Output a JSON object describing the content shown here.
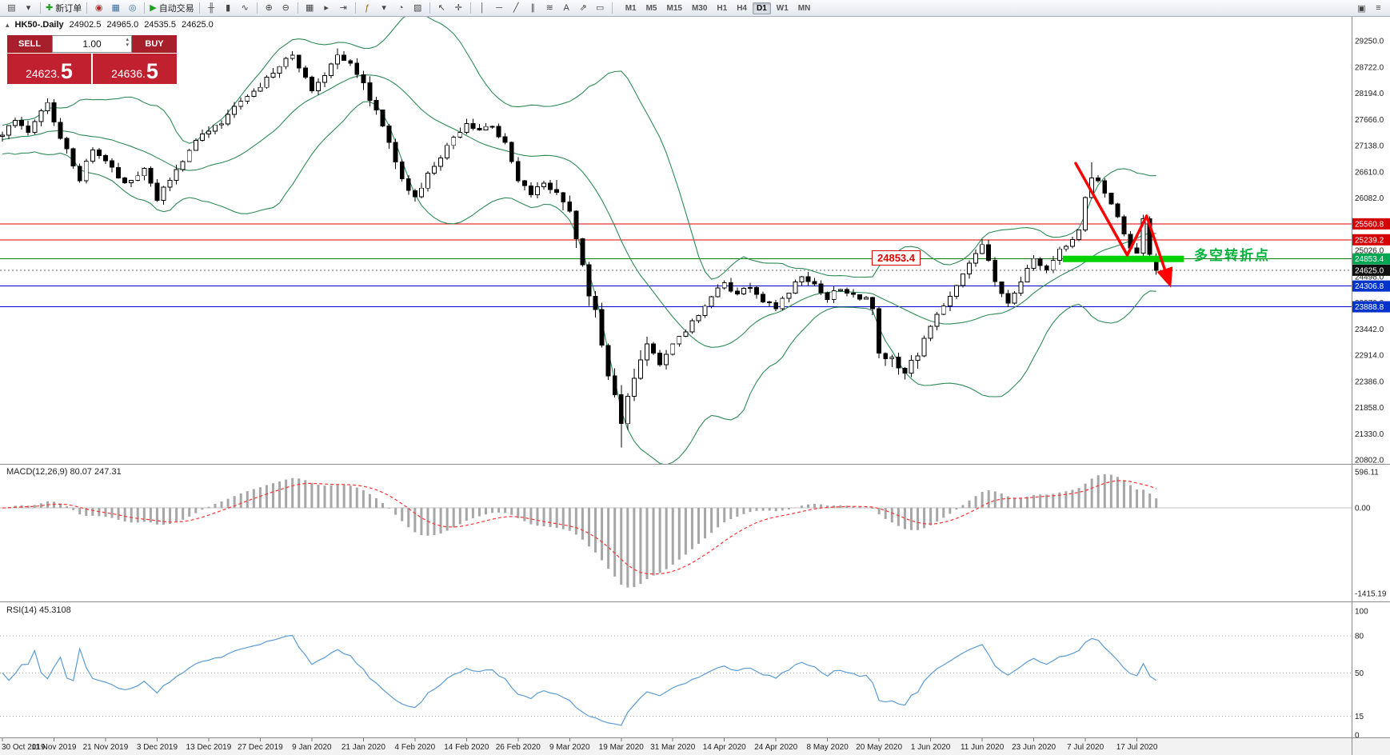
{
  "toolbar": {
    "groups": [
      {
        "items": [
          {
            "name": "charts-icon",
            "glyph": "▤"
          },
          {
            "name": "chart-list-dropdown-icon",
            "glyph": "▾"
          }
        ]
      },
      {
        "items": [
          {
            "name": "new-order-button",
            "glyph": "✚",
            "glyph_color": "#1f9e1f",
            "label": "新订单"
          }
        ]
      },
      {
        "items": [
          {
            "name": "market-watch-icon",
            "glyph": "◉",
            "glyph_color": "#b03030"
          },
          {
            "name": "data-window-icon",
            "glyph": "▦",
            "glyph_color": "#3a6ea5"
          },
          {
            "name": "navigator-icon",
            "glyph": "◎",
            "glyph_color": "#3a6ea5"
          }
        ]
      },
      {
        "items": [
          {
            "name": "auto-trading-button",
            "glyph": "▶",
            "glyph_color": "#1f9e1f",
            "label": "自动交易"
          }
        ]
      },
      {
        "items": [
          {
            "name": "bar-chart-icon",
            "glyph": "╫"
          },
          {
            "name": "candlestick-chart-icon",
            "glyph": "▮"
          },
          {
            "name": "line-chart-icon",
            "glyph": "∿"
          }
        ]
      },
      {
        "items": [
          {
            "name": "zoom-in-icon",
            "glyph": "⊕"
          },
          {
            "name": "zoom-out-icon",
            "glyph": "⊖"
          }
        ]
      },
      {
        "items": [
          {
            "name": "tile-windows-icon",
            "glyph": "▦"
          },
          {
            "name": "auto-scroll-icon",
            "glyph": "▸"
          },
          {
            "name": "chart-shift-icon",
            "glyph": "⇥"
          }
        ]
      },
      {
        "items": [
          {
            "name": "indicators-icon",
            "glyph": "ƒ",
            "glyph_color": "#8a6d1a"
          },
          {
            "name": "indicators-dropdown-icon",
            "glyph": "▾"
          },
          {
            "name": "periods-dropdown-icon",
            "glyph": "◔"
          },
          {
            "name": "templates-icon",
            "glyph": "▧"
          }
        ]
      },
      {
        "items": [
          {
            "name": "cursor-icon",
            "glyph": "↖"
          },
          {
            "name": "crosshair-icon",
            "glyph": "✛"
          }
        ]
      },
      {
        "items": [
          {
            "name": "vertical-line-icon",
            "glyph": "│"
          },
          {
            "name": "horizontal-line-icon",
            "glyph": "─"
          },
          {
            "name": "trendline-icon",
            "glyph": "╱"
          },
          {
            "name": "channel-icon",
            "glyph": "∥"
          },
          {
            "name": "fibonacci-icon",
            "glyph": "≋"
          },
          {
            "name": "text-label-icon",
            "glyph": "A"
          },
          {
            "name": "arrow-object-icon",
            "glyph": "⇗"
          },
          {
            "name": "shapes-icon",
            "glyph": "▭"
          }
        ]
      }
    ],
    "timeframes": {
      "items": [
        "M1",
        "M5",
        "M15",
        "M30",
        "H1",
        "H4",
        "D1",
        "W1",
        "MN"
      ],
      "active": "D1"
    },
    "right_icons": [
      {
        "name": "window-menu-icon",
        "glyph": "▣"
      },
      {
        "name": "help-icon",
        "glyph": "≡"
      }
    ]
  },
  "chart_title": {
    "arrow_glyph": "▴",
    "symbol": "HK50-.Daily",
    "open": "24902.5",
    "high": "24965.0",
    "low": "24535.5",
    "close": "24625.0"
  },
  "trade_panel": {
    "sell_label": "SELL",
    "buy_label": "BUY",
    "volume": "1.00",
    "up_glyph": "▴",
    "down_glyph": "▾",
    "sell_price_small": "24623.",
    "sell_price_big": "5",
    "buy_price_small": "24636.",
    "buy_price_big": "5"
  },
  "colors": {
    "bull": "#ffffff",
    "bear": "#000000",
    "candle_outline": "#000000",
    "bollinger": "#2e8b57",
    "zone_green": "#00d200",
    "zigzag_red": "#ff0000",
    "macd_hist": "#a6a6a6",
    "macd_signal": "#ff3333",
    "rsi_line": "#5b9bd5",
    "annotation_green": "#00b43c"
  },
  "chart_data": {
    "type": "candlestick",
    "symbol": "HK50",
    "timeframe": "Daily",
    "candle_count": 180,
    "last_ohlc": {
      "open": 24902.5,
      "high": 24965.0,
      "low": 24535.5,
      "close": 24625.0
    },
    "close_anchors": [
      [
        0,
        27350
      ],
      [
        2,
        27600
      ],
      [
        4,
        27420
      ],
      [
        7,
        27950
      ],
      [
        9,
        27300
      ],
      [
        12,
        26450
      ],
      [
        14,
        27050
      ],
      [
        16,
        26800
      ],
      [
        19,
        26350
      ],
      [
        22,
        26650
      ],
      [
        24,
        26050
      ],
      [
        27,
        26600
      ],
      [
        30,
        27250
      ],
      [
        34,
        27600
      ],
      [
        38,
        28150
      ],
      [
        40,
        28300
      ],
      [
        43,
        28750
      ],
      [
        45,
        28900
      ],
      [
        47,
        28450
      ],
      [
        48,
        28200
      ],
      [
        50,
        28500
      ],
      [
        52,
        28950
      ],
      [
        54,
        28750
      ],
      [
        56,
        28350
      ],
      [
        58,
        27800
      ],
      [
        60,
        27150
      ],
      [
        62,
        26400
      ],
      [
        64,
        26050
      ],
      [
        66,
        26500
      ],
      [
        68,
        26900
      ],
      [
        70,
        27250
      ],
      [
        72,
        27550
      ],
      [
        74,
        27400
      ],
      [
        76,
        27500
      ],
      [
        78,
        27150
      ],
      [
        80,
        26450
      ],
      [
        82,
        26150
      ],
      [
        84,
        26350
      ],
      [
        86,
        26200
      ],
      [
        88,
        25700
      ],
      [
        90,
        24600
      ],
      [
        92,
        23700
      ],
      [
        94,
        22400
      ],
      [
        96,
        21550
      ],
      [
        98,
        22450
      ],
      [
        100,
        23100
      ],
      [
        102,
        22700
      ],
      [
        104,
        23150
      ],
      [
        106,
        23400
      ],
      [
        108,
        23700
      ],
      [
        110,
        24100
      ],
      [
        112,
        24350
      ],
      [
        114,
        24100
      ],
      [
        116,
        24300
      ],
      [
        118,
        24000
      ],
      [
        120,
        23850
      ],
      [
        122,
        24150
      ],
      [
        124,
        24500
      ],
      [
        126,
        24300
      ],
      [
        128,
        24050
      ],
      [
        130,
        24250
      ],
      [
        132,
        24100
      ],
      [
        134,
        23980
      ],
      [
        135,
        23850
      ],
      [
        136,
        22950
      ],
      [
        138,
        22750
      ],
      [
        140,
        22550
      ],
      [
        142,
        22900
      ],
      [
        144,
        23500
      ],
      [
        146,
        23900
      ],
      [
        148,
        24300
      ],
      [
        150,
        24700
      ],
      [
        152,
        25150
      ],
      [
        154,
        24400
      ],
      [
        156,
        23950
      ],
      [
        158,
        24400
      ],
      [
        160,
        24800
      ],
      [
        162,
        24650
      ],
      [
        164,
        25000
      ],
      [
        166,
        25250
      ],
      [
        167,
        25400
      ],
      [
        168,
        26050
      ],
      [
        169,
        26500
      ],
      [
        170,
        26400
      ],
      [
        171,
        26150
      ],
      [
        172,
        25900
      ],
      [
        173,
        25650
      ],
      [
        174,
        25350
      ],
      [
        175,
        25050
      ],
      [
        176,
        24950
      ],
      [
        177,
        25600
      ],
      [
        178,
        24900
      ],
      [
        179,
        24625
      ]
    ],
    "forced_extremes": {
      "45": {
        "high": 28980
      },
      "52": {
        "high": 29100
      },
      "96": {
        "low": 21050
      },
      "152": {
        "high": 25250
      },
      "169": {
        "high": 26800
      }
    },
    "seed": 20200722,
    "noise_amp": 40,
    "x_labels": [
      [
        "30 Oct 2019",
        0
      ],
      [
        "11 Nov 2019",
        8
      ],
      [
        "21 Nov 2019",
        16
      ],
      [
        "3 Dec 2019",
        24
      ],
      [
        "13 Dec 2019",
        32
      ],
      [
        "27 Dec 2019",
        40
      ],
      [
        "9 Jan 2020",
        48
      ],
      [
        "21 Jan 2020",
        56
      ],
      [
        "4 Feb 2020",
        64
      ],
      [
        "14 Feb 2020",
        72
      ],
      [
        "26 Feb 2020",
        80
      ],
      [
        "9 Mar 2020",
        88
      ],
      [
        "19 Mar 2020",
        96
      ],
      [
        "31 Mar 2020",
        104
      ],
      [
        "14 Apr 2020",
        112
      ],
      [
        "24 Apr 2020",
        120
      ],
      [
        "8 May 2020",
        128
      ],
      [
        "20 May 2020",
        136
      ],
      [
        "1 Jun 2020",
        144
      ],
      [
        "11 Jun 2020",
        152
      ],
      [
        "23 Jun 2020",
        160
      ],
      [
        "7 Jul 2020",
        168
      ],
      [
        "17 Jul 2020",
        176
      ]
    ],
    "y_axis": {
      "ylim": [
        20722,
        29750
      ],
      "labels": [
        "29250.0",
        "28722.0",
        "28194.0",
        "27666.0",
        "27138.0",
        "26610.0",
        "26082.0",
        "25554.0",
        "25026.0",
        "24498.0",
        "23970.0",
        "23442.0",
        "22914.0",
        "22386.0",
        "21858.0",
        "21330.0",
        "20802.0"
      ]
    },
    "horizontal_lines": [
      {
        "price": 25560.8,
        "color": "#e00000",
        "dash": ""
      },
      {
        "price": 25239.2,
        "color": "#e00000",
        "dash": ""
      },
      {
        "price": 24853.4,
        "color": "#008000",
        "dash": ""
      },
      {
        "price": 24625.0,
        "color": "#666666",
        "dash": "2 3"
      },
      {
        "price": 24306.8,
        "color": "#0000cc",
        "dash": ""
      },
      {
        "price": 23888.8,
        "color": "#0000cc",
        "dash": ""
      }
    ],
    "badges": [
      {
        "label": "25560.8",
        "price": 25560.8,
        "bg": "#d40000"
      },
      {
        "label": "25239.2",
        "price": 25239.2,
        "bg": "#d40000"
      },
      {
        "label": "24853.4",
        "price": 24853.4,
        "bg": "#00a651"
      },
      {
        "label": "24625.0",
        "price": 24625.0,
        "bg": "#101010"
      },
      {
        "label": "24306.8",
        "price": 24306.8,
        "bg": "#0033cc"
      },
      {
        "label": "23888.8",
        "price": 23888.8,
        "bg": "#0033cc"
      }
    ],
    "indicators": {
      "bollinger": {
        "period": 20,
        "deviation": 2
      },
      "macd": {
        "label": "MACD(12,26,9) 80.07 247.31",
        "fast": 12,
        "slow": 26,
        "signal": 9,
        "scale_labels": [
          "596.11",
          "0.00",
          "-1415.19"
        ],
        "scale_values": [
          596.11,
          0,
          -1415.19
        ],
        "ylim": [
          -1547,
          715
        ]
      },
      "rsi": {
        "label": "RSI(14) 45.3108",
        "period": 14,
        "current": 45.3108,
        "levels": [
          80,
          50,
          15
        ],
        "scale_labels": [
          "100",
          "80",
          "50",
          "15",
          "0"
        ],
        "scale_values": [
          100,
          80,
          50,
          15,
          0
        ],
        "ylim": [
          -2,
          107
        ]
      }
    },
    "annotations": {
      "zigzag_points": [
        [
          166.5,
          26780
        ],
        [
          174.5,
          24930
        ],
        [
          177.5,
          25720
        ],
        [
          181,
          24380
        ]
      ],
      "green_zone": {
        "price": 24853.4,
        "idx_from": 164.5,
        "idx_to": 183.3
      },
      "price_label": "24853.4",
      "text_label": "多空转折点"
    }
  }
}
